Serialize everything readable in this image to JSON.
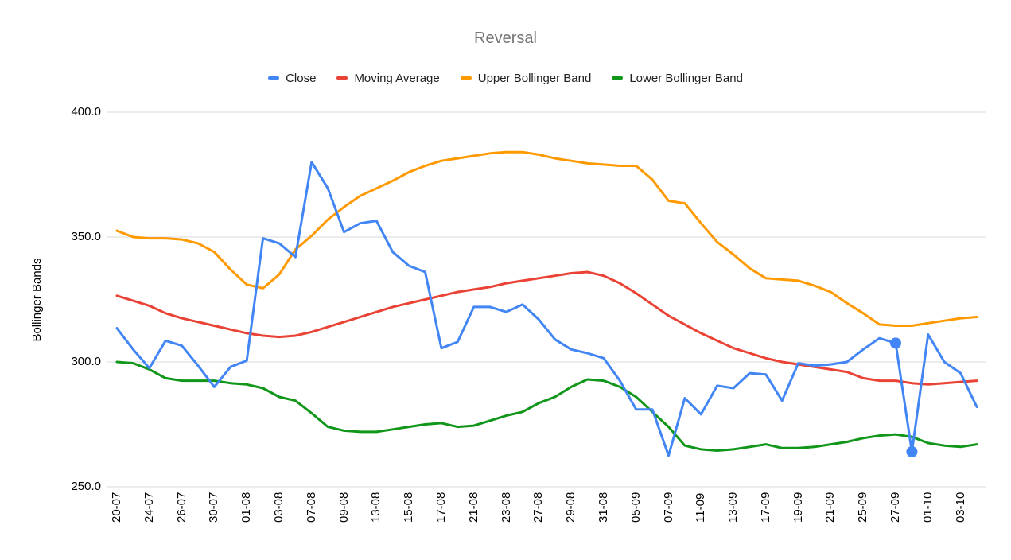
{
  "title": "Reversal",
  "legend": {
    "items": [
      {
        "label": "Close",
        "color": "#4285F4"
      },
      {
        "label": "Moving Average",
        "color": "#EA4335"
      },
      {
        "label": "Upper Bollinger Band",
        "color": "#FF9900"
      },
      {
        "label": "Lower Bollinger Band",
        "color": "#109618"
      }
    ]
  },
  "y_axis": {
    "title": "Bollinger Bands",
    "ticks": [
      {
        "label": "400.0",
        "value": 400
      },
      {
        "label": "350.0",
        "value": 350
      },
      {
        "label": "300.0",
        "value": 300
      },
      {
        "label": "250.0",
        "value": 250
      }
    ]
  },
  "chart_data": {
    "type": "line",
    "title": "Reversal",
    "ylabel": "Bollinger Bands",
    "ylim": [
      250,
      400
    ],
    "grid": true,
    "legend_position": "top",
    "x_tick_labels": [
      "20-07",
      "24-07",
      "26-07",
      "30-07",
      "01-08",
      "03-08",
      "07-08",
      "09-08",
      "13-08",
      "15-08",
      "17-08",
      "21-08",
      "23-08",
      "27-08",
      "29-08",
      "31-08",
      "05-09",
      "07-09",
      "11-09",
      "13-09",
      "17-09",
      "19-09",
      "21-09",
      "25-09",
      "27-09",
      "01-10",
      "03-10"
    ],
    "label_every_n_points": 2,
    "n_points": 54,
    "series": [
      {
        "name": "Close",
        "color": "#4285F4",
        "values": [
          313.5,
          305,
          297.5,
          308.5,
          306.5,
          298.5,
          290,
          298,
          300.5,
          349.5,
          347.5,
          342,
          380,
          369.5,
          352,
          355.5,
          356.5,
          344,
          338.5,
          336,
          305.5,
          308,
          322,
          322,
          320,
          323,
          317,
          309,
          305,
          303.5,
          301.5,
          292.5,
          281,
          281,
          262.5,
          285.5,
          279,
          290.5,
          289.5,
          295.5,
          295,
          284.5,
          299.5,
          298.5,
          299,
          300,
          305,
          309.5,
          307.5,
          264,
          311,
          300,
          295.5,
          282
        ]
      },
      {
        "name": "Moving Average",
        "color": "#EA4335",
        "values": [
          326.5,
          324.5,
          322.5,
          319.5,
          317.5,
          316,
          314.5,
          313,
          311.5,
          310.5,
          310,
          310.5,
          312,
          314,
          316,
          318,
          320,
          322,
          323.5,
          325,
          326.5,
          328,
          329,
          330,
          331.5,
          332.5,
          333.5,
          334.5,
          335.5,
          336,
          334.5,
          331.5,
          327.5,
          323,
          318.5,
          315,
          311.5,
          308.5,
          305.5,
          303.5,
          301.5,
          300,
          299,
          298,
          297,
          296,
          293.5,
          292.5,
          292.5,
          291.5,
          291,
          291.5,
          292,
          292.5
        ]
      },
      {
        "name": "Upper Bollinger Band",
        "color": "#FF9900",
        "values": [
          352.5,
          350,
          349.5,
          349.5,
          349,
          347.5,
          344,
          337,
          331,
          329.5,
          335,
          345,
          350.5,
          357,
          362,
          366.5,
          369.5,
          372.5,
          376,
          378.5,
          380.5,
          381.5,
          382.5,
          383.5,
          384,
          384,
          383,
          381.5,
          380.5,
          379.5,
          379,
          378.5,
          378.5,
          373,
          364.5,
          363.5,
          355.5,
          348,
          343,
          337.5,
          333.5,
          333,
          332.5,
          330.5,
          328,
          323.5,
          319.5,
          315,
          314.5,
          314.5,
          315.5,
          316.5,
          317.5,
          318
        ]
      },
      {
        "name": "Lower Bollinger Band",
        "color": "#109618",
        "values": [
          300,
          299.5,
          297,
          293.5,
          292.5,
          292.5,
          292.5,
          291.5,
          291,
          289.5,
          286,
          284.5,
          279.5,
          274,
          272.5,
          272,
          272,
          273,
          274,
          275,
          275.5,
          274,
          274.5,
          276.5,
          278.5,
          280,
          283.5,
          286,
          290,
          293,
          292.5,
          290,
          286,
          280,
          274,
          266.5,
          265,
          264.5,
          265,
          266,
          267,
          265.5,
          265.5,
          266,
          267,
          268,
          269.5,
          270.5,
          271,
          270,
          267.5,
          266.5,
          266,
          267
        ]
      }
    ],
    "markers": [
      {
        "series": "Close",
        "index": 48,
        "value": 307.5
      },
      {
        "series": "Close",
        "index": 49,
        "value": 264
      }
    ]
  }
}
